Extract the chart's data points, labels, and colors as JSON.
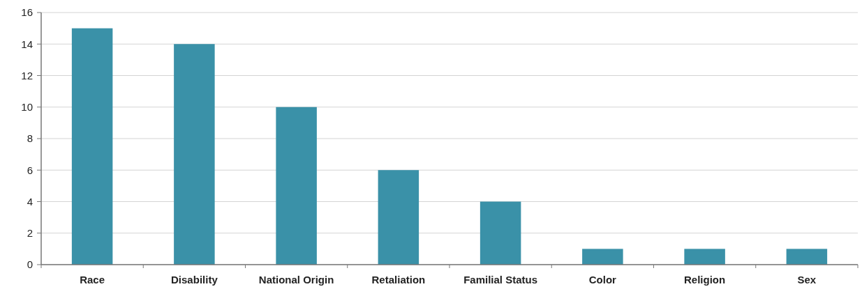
{
  "chart_data": {
    "type": "bar",
    "categories": [
      "Race",
      "Disability",
      "National Origin",
      "Retaliation",
      "Familial Status",
      "Color",
      "Religion",
      "Sex"
    ],
    "values": [
      15,
      14,
      10,
      6,
      4,
      1,
      1,
      1
    ],
    "color": "#3a91a8",
    "ylim": [
      0,
      16
    ],
    "yticks": [
      0,
      2,
      4,
      6,
      8,
      10,
      12,
      14,
      16
    ],
    "grid": "y"
  }
}
